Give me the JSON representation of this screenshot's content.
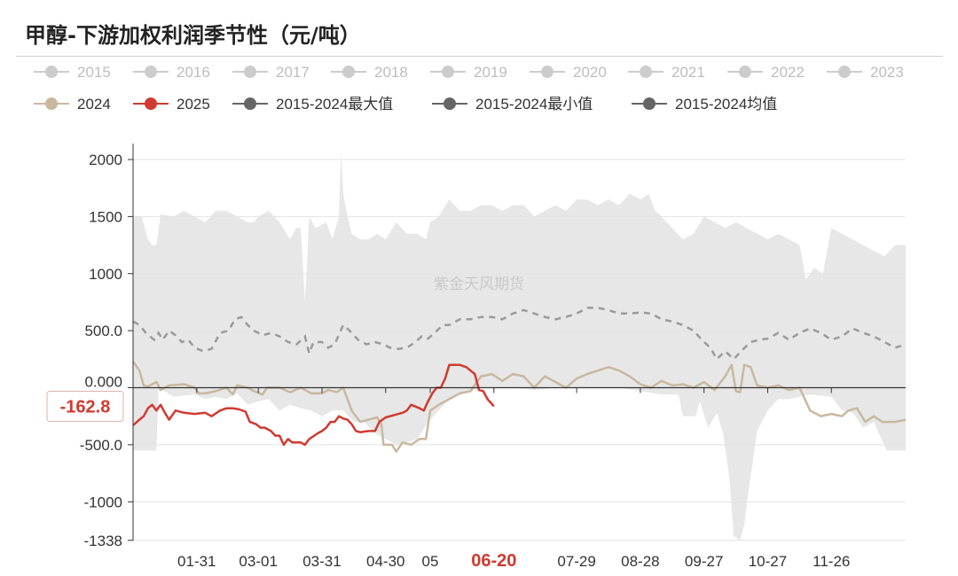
{
  "title": "甲醇-下游加权利润季节性（元/吨）",
  "watermark": "紫金天风期货",
  "chart_data": {
    "type": "line",
    "y_ticks": [
      {
        "v": 2000,
        "label": "2000"
      },
      {
        "v": 1500,
        "label": "1500"
      },
      {
        "v": 1000,
        "label": "1000"
      },
      {
        "v": 500,
        "label": "500.0"
      },
      {
        "v": 0,
        "label": "0.000"
      },
      {
        "v": -500,
        "label": "-500.0"
      },
      {
        "v": -1000,
        "label": "-1000"
      },
      {
        "v": -1338,
        "label": "-1338"
      }
    ],
    "ylim": [
      -1338,
      2100
    ],
    "x_ticks": [
      {
        "d": 31,
        "label": "01-31"
      },
      {
        "d": 60,
        "label": "03-01"
      },
      {
        "d": 90,
        "label": "03-31"
      },
      {
        "d": 120,
        "label": "04-30"
      },
      {
        "d": 141,
        "label": "05"
      },
      {
        "d": 171,
        "label": "06-20"
      },
      {
        "d": 210,
        "label": "07-29"
      },
      {
        "d": 240,
        "label": "08-28"
      },
      {
        "d": 270,
        "label": "09-27"
      },
      {
        "d": 300,
        "label": "10-27"
      },
      {
        "d": 330,
        "label": "11-26"
      }
    ],
    "highlight_x_label": "06-20",
    "pointer": {
      "value": -162.8,
      "label": "-162.8"
    },
    "legend": [
      {
        "name": "2015",
        "color": "#cccccc",
        "muted": true
      },
      {
        "name": "2016",
        "color": "#cccccc",
        "muted": true
      },
      {
        "name": "2017",
        "color": "#cccccc",
        "muted": true
      },
      {
        "name": "2018",
        "color": "#cccccc",
        "muted": true
      },
      {
        "name": "2019",
        "color": "#cccccc",
        "muted": true
      },
      {
        "name": "2020",
        "color": "#cccccc",
        "muted": true
      },
      {
        "name": "2021",
        "color": "#cccccc",
        "muted": true
      },
      {
        "name": "2022",
        "color": "#cccccc",
        "muted": true
      },
      {
        "name": "2023",
        "color": "#cccccc",
        "muted": true
      },
      {
        "name": "2024",
        "color": "#c8b8a0",
        "muted": false
      },
      {
        "name": "2025",
        "color": "#d03a30",
        "muted": false
      },
      {
        "name": "2015-2024最大值",
        "color": "#666666",
        "muted": false
      },
      {
        "name": "2015-2024最小值",
        "color": "#666666",
        "muted": false
      },
      {
        "name": "2015-2024均值",
        "color": "#666666",
        "muted": false
      }
    ],
    "band_max": [
      [
        1,
        1500
      ],
      [
        5,
        1500
      ],
      [
        8,
        1300
      ],
      [
        10,
        1250
      ],
      [
        12,
        1250
      ],
      [
        14,
        1520
      ],
      [
        20,
        1500
      ],
      [
        25,
        1550
      ],
      [
        30,
        1500
      ],
      [
        35,
        1450
      ],
      [
        40,
        1550
      ],
      [
        45,
        1550
      ],
      [
        50,
        1500
      ],
      [
        55,
        1450
      ],
      [
        58,
        1450
      ],
      [
        60,
        1500
      ],
      [
        65,
        1550
      ],
      [
        70,
        1450
      ],
      [
        75,
        1300
      ],
      [
        78,
        1400
      ],
      [
        80,
        1400
      ],
      [
        82,
        760
      ],
      [
        83,
        1100
      ],
      [
        84,
        1500
      ],
      [
        87,
        1400
      ],
      [
        92,
        1450
      ],
      [
        95,
        1300
      ],
      [
        98,
        1500
      ],
      [
        99,
        2080
      ],
      [
        100,
        1700
      ],
      [
        102,
        1500
      ],
      [
        104,
        1350
      ],
      [
        108,
        1300
      ],
      [
        112,
        1300
      ],
      [
        116,
        1350
      ],
      [
        120,
        1300
      ],
      [
        125,
        1450
      ],
      [
        130,
        1350
      ],
      [
        135,
        1350
      ],
      [
        139,
        1300
      ],
      [
        141,
        1450
      ],
      [
        145,
        1500
      ],
      [
        150,
        1650
      ],
      [
        155,
        1550
      ],
      [
        160,
        1550
      ],
      [
        165,
        1600
      ],
      [
        170,
        1600
      ],
      [
        175,
        1550
      ],
      [
        180,
        1600
      ],
      [
        185,
        1600
      ],
      [
        190,
        1500
      ],
      [
        195,
        1550
      ],
      [
        200,
        1600
      ],
      [
        205,
        1550
      ],
      [
        210,
        1650
      ],
      [
        215,
        1650
      ],
      [
        220,
        1600
      ],
      [
        225,
        1650
      ],
      [
        230,
        1600
      ],
      [
        235,
        1700
      ],
      [
        240,
        1650
      ],
      [
        244,
        1700
      ],
      [
        247,
        1550
      ],
      [
        250,
        1500
      ],
      [
        255,
        1400
      ],
      [
        260,
        1300
      ],
      [
        265,
        1350
      ],
      [
        270,
        1500
      ],
      [
        275,
        1450
      ],
      [
        280,
        1400
      ],
      [
        285,
        1450
      ],
      [
        290,
        1400
      ],
      [
        295,
        1350
      ],
      [
        300,
        1300
      ],
      [
        305,
        1350
      ],
      [
        310,
        1300
      ],
      [
        315,
        1250
      ],
      [
        318,
        950
      ],
      [
        322,
        1050
      ],
      [
        326,
        1000
      ],
      [
        330,
        1400
      ],
      [
        335,
        1350
      ],
      [
        340,
        1300
      ],
      [
        345,
        1250
      ],
      [
        350,
        1200
      ],
      [
        355,
        1150
      ],
      [
        360,
        1250
      ],
      [
        365,
        1250
      ]
    ],
    "band_min": [
      [
        1,
        -550
      ],
      [
        12,
        -550
      ],
      [
        13,
        0
      ],
      [
        20,
        -80
      ],
      [
        30,
        -60
      ],
      [
        35,
        -100
      ],
      [
        40,
        -80
      ],
      [
        45,
        -100
      ],
      [
        50,
        -50
      ],
      [
        55,
        -150
      ],
      [
        60,
        -120
      ],
      [
        65,
        -100
      ],
      [
        70,
        -200
      ],
      [
        75,
        -150
      ],
      [
        80,
        -180
      ],
      [
        85,
        -200
      ],
      [
        90,
        -250
      ],
      [
        95,
        -200
      ],
      [
        100,
        -200
      ],
      [
        105,
        -300
      ],
      [
        110,
        -300
      ],
      [
        115,
        -400
      ],
      [
        120,
        -450
      ],
      [
        125,
        -500
      ],
      [
        130,
        -480
      ],
      [
        135,
        -450
      ],
      [
        140,
        -300
      ],
      [
        145,
        -200
      ],
      [
        150,
        -100
      ],
      [
        155,
        -50
      ],
      [
        160,
        -30
      ],
      [
        165,
        0
      ],
      [
        170,
        20
      ],
      [
        175,
        30
      ],
      [
        180,
        0
      ],
      [
        190,
        -20
      ],
      [
        200,
        0
      ],
      [
        210,
        20
      ],
      [
        220,
        10
      ],
      [
        230,
        0
      ],
      [
        240,
        -30
      ],
      [
        250,
        -60
      ],
      [
        258,
        -60
      ],
      [
        260,
        -250
      ],
      [
        266,
        -250
      ],
      [
        268,
        -120
      ],
      [
        272,
        -350
      ],
      [
        276,
        -220
      ],
      [
        279,
        -400
      ],
      [
        282,
        -800
      ],
      [
        284,
        -1300
      ],
      [
        287,
        -1338
      ],
      [
        289,
        -1200
      ],
      [
        291,
        -900
      ],
      [
        293,
        -650
      ],
      [
        295,
        -380
      ],
      [
        300,
        -200
      ],
      [
        305,
        -100
      ],
      [
        310,
        -100
      ],
      [
        320,
        -60
      ],
      [
        330,
        -80
      ],
      [
        335,
        -200
      ],
      [
        340,
        -220
      ],
      [
        345,
        -350
      ],
      [
        350,
        -300
      ],
      [
        356,
        -550
      ],
      [
        365,
        -550
      ]
    ],
    "series_2024": [
      [
        1,
        230
      ],
      [
        4,
        150
      ],
      [
        6,
        20
      ],
      [
        8,
        10
      ],
      [
        12,
        50
      ],
      [
        14,
        -20
      ],
      [
        18,
        20
      ],
      [
        25,
        30
      ],
      [
        30,
        0
      ],
      [
        32,
        -50
      ],
      [
        35,
        -50
      ],
      [
        40,
        -30
      ],
      [
        45,
        0
      ],
      [
        48,
        -60
      ],
      [
        50,
        20
      ],
      [
        55,
        0
      ],
      [
        58,
        -30
      ],
      [
        62,
        -60
      ],
      [
        64,
        0
      ],
      [
        70,
        0
      ],
      [
        75,
        -40
      ],
      [
        80,
        0
      ],
      [
        85,
        -50
      ],
      [
        90,
        -50
      ],
      [
        93,
        -20
      ],
      [
        97,
        -40
      ],
      [
        100,
        0
      ],
      [
        104,
        -200
      ],
      [
        108,
        -300
      ],
      [
        112,
        -280
      ],
      [
        116,
        -260
      ],
      [
        118,
        -320
      ],
      [
        119,
        -500
      ],
      [
        123,
        -500
      ],
      [
        125,
        -560
      ],
      [
        128,
        -480
      ],
      [
        132,
        -500
      ],
      [
        136,
        -450
      ],
      [
        139,
        -450
      ],
      [
        141,
        -200
      ],
      [
        145,
        -150
      ],
      [
        150,
        -100
      ],
      [
        155,
        -50
      ],
      [
        160,
        -30
      ],
      [
        163,
        50
      ],
      [
        165,
        100
      ],
      [
        170,
        120
      ],
      [
        175,
        60
      ],
      [
        180,
        120
      ],
      [
        185,
        100
      ],
      [
        190,
        0
      ],
      [
        195,
        100
      ],
      [
        200,
        50
      ],
      [
        205,
        0
      ],
      [
        210,
        80
      ],
      [
        215,
        120
      ],
      [
        220,
        150
      ],
      [
        225,
        180
      ],
      [
        230,
        150
      ],
      [
        235,
        100
      ],
      [
        240,
        30
      ],
      [
        245,
        0
      ],
      [
        250,
        60
      ],
      [
        255,
        20
      ],
      [
        260,
        30
      ],
      [
        265,
        0
      ],
      [
        270,
        50
      ],
      [
        275,
        -20
      ],
      [
        280,
        100
      ],
      [
        283,
        200
      ],
      [
        285,
        -30
      ],
      [
        287,
        -40
      ],
      [
        289,
        200
      ],
      [
        292,
        180
      ],
      [
        295,
        20
      ],
      [
        300,
        0
      ],
      [
        305,
        20
      ],
      [
        310,
        -20
      ],
      [
        315,
        0
      ],
      [
        320,
        -200
      ],
      [
        325,
        -250
      ],
      [
        330,
        -230
      ],
      [
        335,
        -250
      ],
      [
        338,
        -200
      ],
      [
        342,
        -180
      ],
      [
        346,
        -300
      ],
      [
        350,
        -250
      ],
      [
        354,
        -300
      ],
      [
        360,
        -300
      ],
      [
        365,
        -280
      ]
    ],
    "series_2025": [
      [
        1,
        -330
      ],
      [
        4,
        -280
      ],
      [
        6,
        -250
      ],
      [
        8,
        -180
      ],
      [
        10,
        -150
      ],
      [
        12,
        -200
      ],
      [
        14,
        -150
      ],
      [
        16,
        -220
      ],
      [
        18,
        -280
      ],
      [
        21,
        -200
      ],
      [
        25,
        -220
      ],
      [
        30,
        -230
      ],
      [
        35,
        -220
      ],
      [
        38,
        -250
      ],
      [
        42,
        -200
      ],
      [
        45,
        -180
      ],
      [
        48,
        -180
      ],
      [
        51,
        -190
      ],
      [
        54,
        -210
      ],
      [
        56,
        -300
      ],
      [
        59,
        -320
      ],
      [
        61,
        -350
      ],
      [
        63,
        -350
      ],
      [
        66,
        -380
      ],
      [
        68,
        -420
      ],
      [
        70,
        -420
      ],
      [
        72,
        -500
      ],
      [
        74,
        -450
      ],
      [
        76,
        -480
      ],
      [
        80,
        -480
      ],
      [
        82,
        -500
      ],
      [
        84,
        -450
      ],
      [
        88,
        -400
      ],
      [
        90,
        -380
      ],
      [
        92,
        -350
      ],
      [
        94,
        -300
      ],
      [
        96,
        -300
      ],
      [
        98,
        -250
      ],
      [
        100,
        -270
      ],
      [
        102,
        -280
      ],
      [
        104,
        -320
      ],
      [
        106,
        -380
      ],
      [
        108,
        -390
      ],
      [
        112,
        -380
      ],
      [
        115,
        -380
      ],
      [
        117,
        -300
      ],
      [
        120,
        -260
      ],
      [
        124,
        -240
      ],
      [
        126,
        -230
      ],
      [
        128,
        -220
      ],
      [
        130,
        -200
      ],
      [
        132,
        -150
      ],
      [
        136,
        -180
      ],
      [
        138,
        -200
      ],
      [
        140,
        -120
      ],
      [
        142,
        -50
      ],
      [
        144,
        0
      ],
      [
        146,
        0
      ],
      [
        148,
        80
      ],
      [
        150,
        200
      ],
      [
        155,
        200
      ],
      [
        158,
        180
      ],
      [
        160,
        150
      ],
      [
        162,
        120
      ],
      [
        164,
        -20
      ],
      [
        166,
        -30
      ],
      [
        168,
        -100
      ],
      [
        171,
        -163
      ]
    ],
    "series_mean": [
      [
        1,
        580
      ],
      [
        4,
        550
      ],
      [
        7,
        480
      ],
      [
        9,
        450
      ],
      [
        11,
        420
      ],
      [
        13,
        480
      ],
      [
        15,
        420
      ],
      [
        18,
        500
      ],
      [
        21,
        460
      ],
      [
        24,
        400
      ],
      [
        27,
        420
      ],
      [
        30,
        350
      ],
      [
        34,
        320
      ],
      [
        38,
        340
      ],
      [
        42,
        480
      ],
      [
        46,
        500
      ],
      [
        49,
        600
      ],
      [
        52,
        620
      ],
      [
        55,
        550
      ],
      [
        58,
        500
      ],
      [
        62,
        460
      ],
      [
        66,
        480
      ],
      [
        70,
        450
      ],
      [
        74,
        400
      ],
      [
        78,
        380
      ],
      [
        82,
        450
      ],
      [
        84,
        300
      ],
      [
        86,
        400
      ],
      [
        90,
        400
      ],
      [
        93,
        350
      ],
      [
        96,
        380
      ],
      [
        100,
        550
      ],
      [
        103,
        500
      ],
      [
        107,
        420
      ],
      [
        111,
        380
      ],
      [
        115,
        400
      ],
      [
        119,
        380
      ],
      [
        122,
        350
      ],
      [
        126,
        340
      ],
      [
        130,
        350
      ],
      [
        134,
        400
      ],
      [
        137,
        450
      ],
      [
        140,
        430
      ],
      [
        143,
        480
      ],
      [
        147,
        550
      ],
      [
        150,
        550
      ],
      [
        155,
        600
      ],
      [
        160,
        600
      ],
      [
        165,
        620
      ],
      [
        170,
        620
      ],
      [
        175,
        600
      ],
      [
        180,
        650
      ],
      [
        185,
        680
      ],
      [
        190,
        650
      ],
      [
        195,
        620
      ],
      [
        200,
        600
      ],
      [
        205,
        620
      ],
      [
        210,
        650
      ],
      [
        215,
        700
      ],
      [
        220,
        700
      ],
      [
        225,
        680
      ],
      [
        230,
        650
      ],
      [
        235,
        650
      ],
      [
        240,
        660
      ],
      [
        245,
        650
      ],
      [
        250,
        600
      ],
      [
        255,
        580
      ],
      [
        260,
        550
      ],
      [
        265,
        500
      ],
      [
        270,
        400
      ],
      [
        273,
        350
      ],
      [
        276,
        250
      ],
      [
        280,
        320
      ],
      [
        284,
        250
      ],
      [
        288,
        330
      ],
      [
        292,
        400
      ],
      [
        296,
        420
      ],
      [
        300,
        430
      ],
      [
        305,
        480
      ],
      [
        310,
        420
      ],
      [
        315,
        480
      ],
      [
        320,
        520
      ],
      [
        325,
        480
      ],
      [
        330,
        420
      ],
      [
        335,
        450
      ],
      [
        340,
        520
      ],
      [
        345,
        480
      ],
      [
        350,
        450
      ],
      [
        355,
        400
      ],
      [
        360,
        350
      ],
      [
        365,
        380
      ]
    ]
  }
}
